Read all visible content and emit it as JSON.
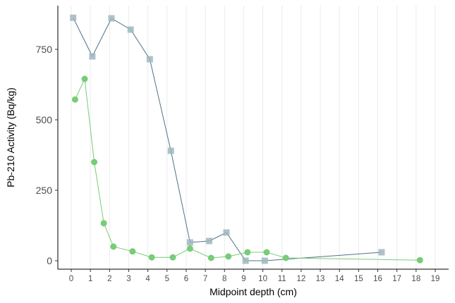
{
  "chart_data": {
    "type": "line",
    "title": "",
    "xlabel": "Midpoint depth (cm)",
    "ylabel": "Pb-210 Activity (Bq/kg)",
    "xlim": [
      -0.7,
      19.7
    ],
    "ylim": [
      -30,
      905
    ],
    "x_ticks": [
      0,
      1,
      2,
      3,
      4,
      5,
      6,
      7,
      8,
      9,
      10,
      11,
      12,
      13,
      14,
      15,
      16,
      17,
      18,
      19
    ],
    "y_ticks": [
      0,
      250,
      500,
      750
    ],
    "grid": "vertical",
    "legend": "none",
    "series": [
      {
        "marker": "square",
        "color": "#9fb7bf",
        "line_color": "#4f7383",
        "points": [
          {
            "x": 0.1,
            "y": 862
          },
          {
            "x": 1.1,
            "y": 725
          },
          {
            "x": 2.1,
            "y": 860
          },
          {
            "x": 3.1,
            "y": 820
          },
          {
            "x": 4.1,
            "y": 715
          },
          {
            "x": 5.2,
            "y": 390
          },
          {
            "x": 6.2,
            "y": 65
          },
          {
            "x": 7.2,
            "y": 70
          },
          {
            "x": 8.1,
            "y": 100
          },
          {
            "x": 9.1,
            "y": 0
          },
          {
            "x": 10.1,
            "y": 0
          },
          {
            "x": 16.2,
            "y": 30
          }
        ]
      },
      {
        "marker": "circle",
        "color": "#77cc77",
        "line_color": "#77cc77",
        "points": [
          {
            "x": 0.2,
            "y": 572
          },
          {
            "x": 0.7,
            "y": 645
          },
          {
            "x": 1.2,
            "y": 350
          },
          {
            "x": 1.7,
            "y": 133
          },
          {
            "x": 2.2,
            "y": 50
          },
          {
            "x": 3.2,
            "y": 33
          },
          {
            "x": 4.2,
            "y": 12
          },
          {
            "x": 5.3,
            "y": 12
          },
          {
            "x": 6.2,
            "y": 43
          },
          {
            "x": 7.3,
            "y": 10
          },
          {
            "x": 8.2,
            "y": 15
          },
          {
            "x": 9.2,
            "y": 30
          },
          {
            "x": 10.2,
            "y": 30
          },
          {
            "x": 11.2,
            "y": 10
          },
          {
            "x": 18.2,
            "y": 2
          }
        ]
      }
    ]
  }
}
